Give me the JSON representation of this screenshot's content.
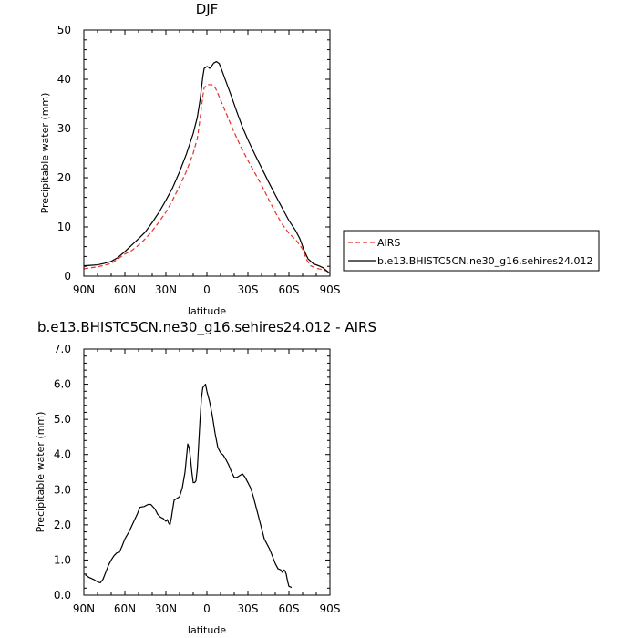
{
  "chart_data": [
    {
      "type": "line",
      "title": "DJF",
      "xlabel": "latitude",
      "ylabel": "Precipitable water (mm)",
      "xlim": [
        90,
        -90
      ],
      "ylim": [
        0,
        50
      ],
      "xticks": [
        90,
        60,
        30,
        0,
        -30,
        -60,
        -90
      ],
      "xtick_labels": [
        "90N",
        "60N",
        "30N",
        "0",
        "30S",
        "60S",
        "90S"
      ],
      "yticks": [
        0,
        10,
        20,
        30,
        40,
        50
      ],
      "ytick_labels": [
        "0",
        "10",
        "20",
        "30",
        "40",
        "50"
      ],
      "legend": {
        "placement": "right",
        "entries": [
          "AIRS",
          "b.e13.BHISTC5CN.ne30_g16.sehires24.012"
        ]
      },
      "series": [
        {
          "name": "AIRS",
          "style": "dashed",
          "color": "#e8302a",
          "points": [
            [
              90,
              1.5
            ],
            [
              85,
              1.7
            ],
            [
              80,
              1.9
            ],
            [
              75,
              2.2
            ],
            [
              70,
              2.6
            ],
            [
              65,
              3.5
            ],
            [
              60,
              4.5
            ],
            [
              55,
              5.2
            ],
            [
              50,
              6.3
            ],
            [
              45,
              7.6
            ],
            [
              40,
              9.2
            ],
            [
              35,
              11.0
            ],
            [
              30,
              13.0
            ],
            [
              25,
              15.5
            ],
            [
              20,
              18.3
            ],
            [
              15,
              21.3
            ],
            [
              10,
              25.0
            ],
            [
              7,
              28.0
            ],
            [
              5,
              32.0
            ],
            [
              3,
              36.5
            ],
            [
              2,
              38.3
            ],
            [
              0,
              38.9
            ],
            [
              -3,
              38.9
            ],
            [
              -5,
              38.8
            ],
            [
              -7,
              37.8
            ],
            [
              -10,
              35.8
            ],
            [
              -15,
              32.5
            ],
            [
              -20,
              29.2
            ],
            [
              -25,
              26.2
            ],
            [
              -30,
              23.5
            ],
            [
              -35,
              21.0
            ],
            [
              -40,
              18.5
            ],
            [
              -45,
              15.7
            ],
            [
              -50,
              13.0
            ],
            [
              -55,
              10.6
            ],
            [
              -60,
              8.7
            ],
            [
              -65,
              7.4
            ],
            [
              -70,
              5.5
            ],
            [
              -73,
              3.3
            ],
            [
              -76,
              2.1
            ],
            [
              -80,
              1.6
            ],
            [
              -85,
              1.3
            ],
            [
              -88,
              1.0
            ],
            [
              -90,
              0.7
            ]
          ]
        },
        {
          "name": "b.e13.BHISTC5CN.ne30_g16.sehires24.012",
          "style": "solid",
          "color": "#000000",
          "points": [
            [
              90,
              2.1
            ],
            [
              85,
              2.2
            ],
            [
              80,
              2.3
            ],
            [
              75,
              2.6
            ],
            [
              70,
              3.0
            ],
            [
              65,
              3.8
            ],
            [
              60,
              5.0
            ],
            [
              55,
              6.3
            ],
            [
              50,
              7.6
            ],
            [
              45,
              9.0
            ],
            [
              40,
              10.9
            ],
            [
              35,
              13.0
            ],
            [
              30,
              15.4
            ],
            [
              25,
              18.0
            ],
            [
              20,
              21.2
            ],
            [
              15,
              24.8
            ],
            [
              10,
              29.0
            ],
            [
              7,
              32.3
            ],
            [
              5,
              35.8
            ],
            [
              3,
              40.5
            ],
            [
              2,
              42.2
            ],
            [
              0,
              42.6
            ],
            [
              -1,
              42.5
            ],
            [
              -2,
              42.2
            ],
            [
              -3,
              42.5
            ],
            [
              -5,
              43.3
            ],
            [
              -7,
              43.6
            ],
            [
              -9,
              43.2
            ],
            [
              -11,
              41.8
            ],
            [
              -14,
              39.5
            ],
            [
              -18,
              36.5
            ],
            [
              -22,
              33.3
            ],
            [
              -26,
              30.3
            ],
            [
              -30,
              27.7
            ],
            [
              -35,
              24.8
            ],
            [
              -40,
              22.0
            ],
            [
              -45,
              19.2
            ],
            [
              -50,
              16.5
            ],
            [
              -55,
              13.9
            ],
            [
              -60,
              11.3
            ],
            [
              -65,
              9.2
            ],
            [
              -68,
              7.6
            ],
            [
              -71,
              5.3
            ],
            [
              -74,
              3.5
            ],
            [
              -78,
              2.5
            ],
            [
              -82,
              2.1
            ],
            [
              -85,
              1.7
            ],
            [
              -88,
              1.0
            ],
            [
              -90,
              0.5
            ]
          ]
        }
      ]
    },
    {
      "type": "line",
      "title": "b.e13.BHISTC5CN.ne30_g16.sehires24.012 - AIRS",
      "xlabel": "latitude",
      "ylabel": "Precipitable water (mm)",
      "xlim": [
        90,
        -90
      ],
      "ylim": [
        0,
        7
      ],
      "xticks": [
        90,
        60,
        30,
        0,
        -30,
        -60,
        -90
      ],
      "xtick_labels": [
        "90N",
        "60N",
        "30N",
        "0",
        "30S",
        "60S",
        "90S"
      ],
      "yticks": [
        0,
        1,
        2,
        3,
        4,
        5,
        6,
        7
      ],
      "ytick_labels": [
        "0.0",
        "1.0",
        "2.0",
        "3.0",
        "4.0",
        "5.0",
        "6.0",
        "7.0"
      ],
      "series": [
        {
          "name": "b.e13.BHISTC5CN.ne30_g16.sehires24.012 - AIRS",
          "style": "solid",
          "color": "#000000",
          "points": [
            [
              89,
              0.58
            ],
            [
              86,
              0.5
            ],
            [
              83,
              0.45
            ],
            [
              80,
              0.38
            ],
            [
              78,
              0.35
            ],
            [
              76,
              0.45
            ],
            [
              74,
              0.65
            ],
            [
              72,
              0.85
            ],
            [
              70,
              1.0
            ],
            [
              68,
              1.12
            ],
            [
              66,
              1.2
            ],
            [
              64,
              1.22
            ],
            [
              62,
              1.4
            ],
            [
              60,
              1.6
            ],
            [
              57,
              1.8
            ],
            [
              54,
              2.05
            ],
            [
              51,
              2.3
            ],
            [
              49,
              2.5
            ],
            [
              46,
              2.52
            ],
            [
              43,
              2.58
            ],
            [
              41,
              2.58
            ],
            [
              38,
              2.45
            ],
            [
              36,
              2.3
            ],
            [
              34,
              2.22
            ],
            [
              32,
              2.18
            ],
            [
              30,
              2.1
            ],
            [
              29,
              2.15
            ],
            [
              28,
              2.05
            ],
            [
              27,
              2.0
            ],
            [
              26,
              2.2
            ],
            [
              24,
              2.7
            ],
            [
              22,
              2.75
            ],
            [
              20,
              2.8
            ],
            [
              18,
              3.05
            ],
            [
              16,
              3.5
            ],
            [
              14,
              4.3
            ],
            [
              13,
              4.2
            ],
            [
              12,
              3.9
            ],
            [
              11,
              3.5
            ],
            [
              10,
              3.2
            ],
            [
              9,
              3.2
            ],
            [
              8,
              3.25
            ],
            [
              7,
              3.6
            ],
            [
              6,
              4.3
            ],
            [
              5,
              5.0
            ],
            [
              4,
              5.6
            ],
            [
              3,
              5.9
            ],
            [
              1,
              6.0
            ],
            [
              0,
              5.8
            ],
            [
              -1,
              5.65
            ],
            [
              -2,
              5.5
            ],
            [
              -4,
              5.1
            ],
            [
              -6,
              4.6
            ],
            [
              -8,
              4.2
            ],
            [
              -10,
              4.05
            ],
            [
              -12,
              3.98
            ],
            [
              -14,
              3.85
            ],
            [
              -16,
              3.7
            ],
            [
              -18,
              3.5
            ],
            [
              -20,
              3.35
            ],
            [
              -22,
              3.35
            ],
            [
              -24,
              3.4
            ],
            [
              -26,
              3.45
            ],
            [
              -28,
              3.35
            ],
            [
              -30,
              3.2
            ],
            [
              -32,
              3.05
            ],
            [
              -34,
              2.8
            ],
            [
              -36,
              2.5
            ],
            [
              -38,
              2.2
            ],
            [
              -40,
              1.9
            ],
            [
              -42,
              1.6
            ],
            [
              -44,
              1.45
            ],
            [
              -46,
              1.3
            ],
            [
              -48,
              1.1
            ],
            [
              -50,
              0.9
            ],
            [
              -52,
              0.75
            ],
            [
              -54,
              0.72
            ],
            [
              -55,
              0.65
            ],
            [
              -56,
              0.72
            ],
            [
              -57,
              0.7
            ],
            [
              -58,
              0.6
            ],
            [
              -59,
              0.4
            ],
            [
              -60,
              0.25
            ],
            [
              -62,
              0.22
            ]
          ]
        }
      ]
    }
  ]
}
